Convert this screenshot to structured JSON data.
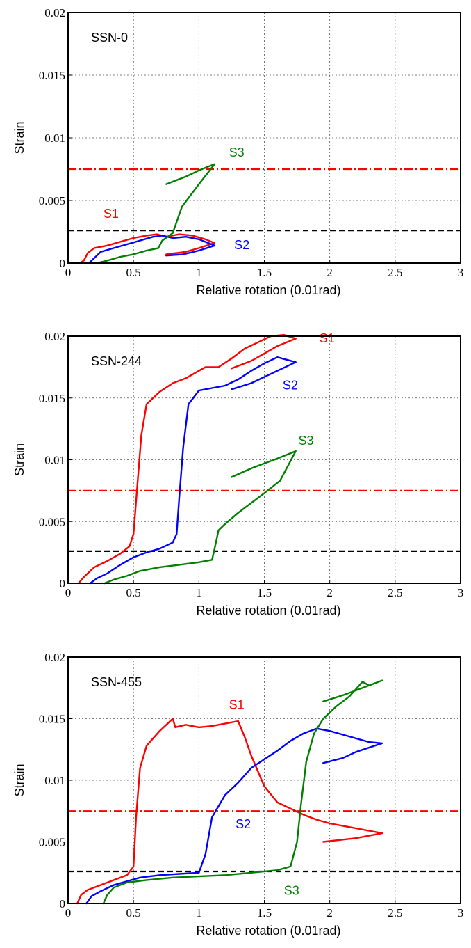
{
  "chart_data": [
    {
      "type": "line",
      "title": "SSN-0",
      "xlabel": "Relative rotation (0.01rad)",
      "ylabel": "Strain",
      "xlim": [
        0,
        3
      ],
      "ylim": [
        0,
        0.02
      ],
      "xticks": [
        0,
        0.5,
        1,
        1.5,
        2,
        2.5,
        3
      ],
      "xtick_labels": [
        "0",
        "0.5",
        "1",
        "1.5",
        "2",
        "2.5",
        "3"
      ],
      "yticks": [
        0,
        0.005,
        0.01,
        0.015,
        0.02
      ],
      "ytick_labels": [
        "0",
        "0.005",
        "0.01",
        "0.015",
        "0.02"
      ],
      "grid": true,
      "reference_lines": [
        {
          "y": 0.0075,
          "style": "dash-dot",
          "color": "#ff0000"
        },
        {
          "y": 0.0026,
          "style": "dashed",
          "color": "#000000"
        }
      ],
      "series": [
        {
          "name": "S1",
          "color": "#ff0000",
          "label_at": [
            0.27,
            0.0036
          ],
          "points": [
            [
              0.09,
              0
            ],
            [
              0.12,
              0.0002
            ],
            [
              0.15,
              0.0008
            ],
            [
              0.2,
              0.0012
            ],
            [
              0.3,
              0.0014
            ],
            [
              0.4,
              0.0017
            ],
            [
              0.5,
              0.002
            ],
            [
              0.6,
              0.0022
            ],
            [
              0.68,
              0.0023
            ],
            [
              0.75,
              0.0021
            ],
            [
              0.85,
              0.0023
            ],
            [
              0.95,
              0.0022
            ],
            [
              1.05,
              0.0019
            ],
            [
              1.12,
              0.0016
            ],
            [
              1.0,
              0.0012
            ],
            [
              0.9,
              0.0009
            ],
            [
              0.75,
              0.0007
            ]
          ]
        },
        {
          "name": "S2",
          "color": "#0000ff",
          "label_at": [
            1.27,
            0.0011
          ],
          "points": [
            [
              0.16,
              0
            ],
            [
              0.2,
              0.0004
            ],
            [
              0.25,
              0.0009
            ],
            [
              0.35,
              0.0012
            ],
            [
              0.45,
              0.0015
            ],
            [
              0.55,
              0.0018
            ],
            [
              0.65,
              0.0021
            ],
            [
              0.72,
              0.0022
            ],
            [
              0.8,
              0.002
            ],
            [
              0.9,
              0.0021
            ],
            [
              1.0,
              0.0019
            ],
            [
              1.12,
              0.0014
            ],
            [
              1.0,
              0.001
            ],
            [
              0.88,
              0.0007
            ],
            [
              0.75,
              0.0006
            ]
          ]
        },
        {
          "name": "S3",
          "color": "#008000",
          "label_at": [
            1.23,
            0.0085
          ],
          "points": [
            [
              0.22,
              0
            ],
            [
              0.3,
              0.0002
            ],
            [
              0.4,
              0.0005
            ],
            [
              0.5,
              0.0007
            ],
            [
              0.6,
              0.001
            ],
            [
              0.69,
              0.0012
            ],
            [
              0.72,
              0.0018
            ],
            [
              0.8,
              0.0024
            ],
            [
              0.87,
              0.0045
            ],
            [
              1.0,
              0.0063
            ],
            [
              1.12,
              0.0079
            ],
            [
              1.0,
              0.0074
            ],
            [
              0.9,
              0.0069
            ],
            [
              0.75,
              0.0063
            ]
          ]
        }
      ]
    },
    {
      "type": "line",
      "title": "SSN-244",
      "xlabel": "Relative rotation (0.01rad)",
      "ylabel": "Strain",
      "xlim": [
        0,
        3
      ],
      "ylim": [
        0,
        0.02
      ],
      "xticks": [
        0,
        0.5,
        1,
        1.5,
        2,
        2.5,
        3
      ],
      "xtick_labels": [
        "0",
        "0.5",
        "1",
        "1.5",
        "2",
        "2.5",
        "3"
      ],
      "yticks": [
        0,
        0.005,
        0.01,
        0.015,
        0.02
      ],
      "ytick_labels": [
        "0",
        "0.005",
        "0.01",
        "0.015",
        "0.02"
      ],
      "grid": true,
      "reference_lines": [
        {
          "y": 0.0075,
          "style": "dash-dot",
          "color": "#ff0000"
        },
        {
          "y": 0.0026,
          "style": "dashed",
          "color": "#000000"
        }
      ],
      "series": [
        {
          "name": "S1",
          "color": "#ff0000",
          "label_at": [
            1.92,
            0.0195
          ],
          "points": [
            [
              0.08,
              0
            ],
            [
              0.12,
              0.0005
            ],
            [
              0.2,
              0.0013
            ],
            [
              0.3,
              0.0018
            ],
            [
              0.4,
              0.0024
            ],
            [
              0.47,
              0.003
            ],
            [
              0.5,
              0.004
            ],
            [
              0.53,
              0.008
            ],
            [
              0.56,
              0.012
            ],
            [
              0.6,
              0.0145
            ],
            [
              0.7,
              0.0155
            ],
            [
              0.8,
              0.0162
            ],
            [
              0.9,
              0.0166
            ],
            [
              1.0,
              0.0172
            ],
            [
              1.05,
              0.0175
            ],
            [
              1.15,
              0.0175
            ],
            [
              1.25,
              0.0182
            ],
            [
              1.35,
              0.019
            ],
            [
              1.45,
              0.0195
            ],
            [
              1.55,
              0.02
            ],
            [
              1.65,
              0.0201
            ],
            [
              1.74,
              0.0198
            ],
            [
              1.6,
              0.0192
            ],
            [
              1.5,
              0.0186
            ],
            [
              1.4,
              0.018
            ],
            [
              1.25,
              0.0174
            ]
          ]
        },
        {
          "name": "S2",
          "color": "#0000ff",
          "label_at": [
            1.64,
            0.0157
          ],
          "points": [
            [
              0.17,
              0
            ],
            [
              0.22,
              0.0004
            ],
            [
              0.3,
              0.0008
            ],
            [
              0.4,
              0.0015
            ],
            [
              0.5,
              0.0021
            ],
            [
              0.6,
              0.0025
            ],
            [
              0.7,
              0.0028
            ],
            [
              0.8,
              0.0033
            ],
            [
              0.83,
              0.004
            ],
            [
              0.85,
              0.007
            ],
            [
              0.88,
              0.011
            ],
            [
              0.92,
              0.0145
            ],
            [
              1.0,
              0.0156
            ],
            [
              1.1,
              0.0158
            ],
            [
              1.2,
              0.016
            ],
            [
              1.3,
              0.0165
            ],
            [
              1.4,
              0.0172
            ],
            [
              1.5,
              0.0178
            ],
            [
              1.6,
              0.0183
            ],
            [
              1.74,
              0.0179
            ],
            [
              1.6,
              0.0172
            ],
            [
              1.5,
              0.0167
            ],
            [
              1.4,
              0.0162
            ],
            [
              1.25,
              0.0157
            ]
          ]
        },
        {
          "name": "S3",
          "color": "#008000",
          "label_at": [
            1.76,
            0.0112
          ],
          "points": [
            [
              0.28,
              0
            ],
            [
              0.35,
              0.0003
            ],
            [
              0.45,
              0.0006
            ],
            [
              0.55,
              0.001
            ],
            [
              0.7,
              0.0013
            ],
            [
              0.85,
              0.0015
            ],
            [
              1.0,
              0.0017
            ],
            [
              1.1,
              0.0019
            ],
            [
              1.12,
              0.0028
            ],
            [
              1.15,
              0.0043
            ],
            [
              1.2,
              0.0048
            ],
            [
              1.3,
              0.0057
            ],
            [
              1.4,
              0.0065
            ],
            [
              1.5,
              0.0073
            ],
            [
              1.62,
              0.0083
            ],
            [
              1.74,
              0.0107
            ],
            [
              1.6,
              0.0101
            ],
            [
              1.5,
              0.0097
            ],
            [
              1.4,
              0.0093
            ],
            [
              1.25,
              0.0086
            ]
          ]
        }
      ]
    },
    {
      "type": "line",
      "title": "SSN-455",
      "xlabel": "Relative rotation (0.01rad)",
      "ylabel": "Strain",
      "xlim": [
        0,
        3
      ],
      "ylim": [
        0,
        0.02
      ],
      "xticks": [
        0,
        0.5,
        1,
        1.5,
        2,
        2.5,
        3
      ],
      "xtick_labels": [
        "0",
        "0.5",
        "1",
        "1.5",
        "2",
        "2.5",
        "3"
      ],
      "yticks": [
        0,
        0.005,
        0.01,
        0.015,
        0.02
      ],
      "ytick_labels": [
        "0",
        "0.005",
        "0.01",
        "0.015",
        "0.02"
      ],
      "grid": true,
      "reference_lines": [
        {
          "y": 0.0075,
          "style": "dash-dot",
          "color": "#ff0000"
        },
        {
          "y": 0.0026,
          "style": "dashed",
          "color": "#000000"
        }
      ],
      "series": [
        {
          "name": "S1",
          "color": "#ff0000",
          "label_at": [
            1.23,
            0.0158
          ],
          "points": [
            [
              0.07,
              0
            ],
            [
              0.1,
              0.0007
            ],
            [
              0.15,
              0.0011
            ],
            [
              0.25,
              0.0015
            ],
            [
              0.35,
              0.0019
            ],
            [
              0.45,
              0.0023
            ],
            [
              0.5,
              0.003
            ],
            [
              0.52,
              0.007
            ],
            [
              0.55,
              0.011
            ],
            [
              0.6,
              0.0128
            ],
            [
              0.7,
              0.014
            ],
            [
              0.8,
              0.015
            ],
            [
              0.82,
              0.0143
            ],
            [
              0.9,
              0.0145
            ],
            [
              1.0,
              0.0143
            ],
            [
              1.1,
              0.0144
            ],
            [
              1.2,
              0.0146
            ],
            [
              1.3,
              0.0148
            ],
            [
              1.35,
              0.0135
            ],
            [
              1.4,
              0.012
            ],
            [
              1.5,
              0.0095
            ],
            [
              1.6,
              0.0082
            ],
            [
              1.7,
              0.0077
            ],
            [
              1.8,
              0.0072
            ],
            [
              1.9,
              0.0068
            ],
            [
              2.0,
              0.0065
            ],
            [
              2.2,
              0.0061
            ],
            [
              2.4,
              0.0057
            ],
            [
              2.2,
              0.0053
            ],
            [
              1.95,
              0.005
            ]
          ]
        },
        {
          "name": "S2",
          "color": "#0000ff",
          "label_at": [
            1.28,
            0.0061
          ],
          "points": [
            [
              0.14,
              0
            ],
            [
              0.18,
              0.0006
            ],
            [
              0.25,
              0.001
            ],
            [
              0.35,
              0.0015
            ],
            [
              0.45,
              0.0018
            ],
            [
              0.55,
              0.0021
            ],
            [
              0.7,
              0.0023
            ],
            [
              0.85,
              0.0024
            ],
            [
              1.0,
              0.0025
            ],
            [
              1.05,
              0.004
            ],
            [
              1.1,
              0.007
            ],
            [
              1.2,
              0.0088
            ],
            [
              1.3,
              0.0098
            ],
            [
              1.4,
              0.011
            ],
            [
              1.5,
              0.0117
            ],
            [
              1.6,
              0.0124
            ],
            [
              1.7,
              0.0132
            ],
            [
              1.8,
              0.0138
            ],
            [
              1.9,
              0.0142
            ],
            [
              2.0,
              0.014
            ],
            [
              2.1,
              0.0137
            ],
            [
              2.3,
              0.0131
            ],
            [
              2.4,
              0.013
            ],
            [
              2.2,
              0.0123
            ],
            [
              2.1,
              0.0118
            ],
            [
              1.95,
              0.0114
            ]
          ]
        },
        {
          "name": "S3",
          "color": "#008000",
          "label_at": [
            1.65,
            0.0007
          ],
          "points": [
            [
              0.27,
              0
            ],
            [
              0.3,
              0.0007
            ],
            [
              0.35,
              0.0013
            ],
            [
              0.45,
              0.0017
            ],
            [
              0.6,
              0.0019
            ],
            [
              0.8,
              0.0021
            ],
            [
              1.0,
              0.0022
            ],
            [
              1.2,
              0.0023
            ],
            [
              1.4,
              0.0025
            ],
            [
              1.6,
              0.0027
            ],
            [
              1.7,
              0.003
            ],
            [
              1.75,
              0.005
            ],
            [
              1.78,
              0.008
            ],
            [
              1.82,
              0.0115
            ],
            [
              1.88,
              0.0138
            ],
            [
              1.95,
              0.015
            ],
            [
              2.05,
              0.016
            ],
            [
              2.15,
              0.0168
            ],
            [
              2.25,
              0.018
            ],
            [
              2.3,
              0.0177
            ],
            [
              2.4,
              0.0181
            ],
            [
              2.25,
              0.0175
            ],
            [
              2.1,
              0.0169
            ],
            [
              1.95,
              0.0164
            ]
          ]
        }
      ]
    }
  ]
}
